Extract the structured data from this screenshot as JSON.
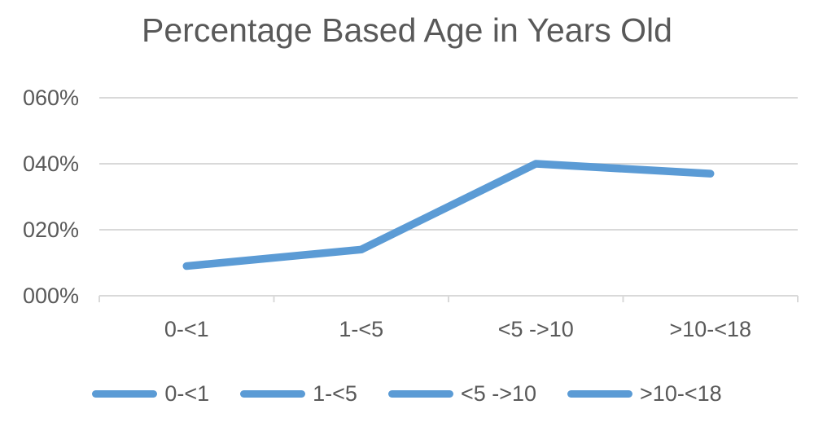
{
  "chart_data": {
    "type": "line",
    "title": "Percentage Based Age in Years Old",
    "categories": [
      "0-<1",
      "1-<5",
      "<5 ->10",
      ">10-<18"
    ],
    "series": [
      {
        "name": "Percentage Based Age in Years Old",
        "values": [
          9,
          14,
          40,
          37
        ]
      }
    ],
    "xlabel": "",
    "ylabel": "",
    "ylim": [
      0,
      60
    ],
    "y_ticks": [
      {
        "value": 0,
        "label": "000%"
      },
      {
        "value": 20,
        "label": "020%"
      },
      {
        "value": 40,
        "label": "040%"
      },
      {
        "value": 60,
        "label": "060%"
      }
    ],
    "grid": "horizontal",
    "legend": {
      "position": "bottom",
      "entries": [
        "0-<1",
        "1-<5",
        "<5 ->10",
        ">10-<18"
      ]
    },
    "colors": {
      "line": "#5B9BD5",
      "grid": "#D9D9D9",
      "axis": "#D9D9D9",
      "text": "#595959",
      "title_text": "#595959",
      "background": "#FFFFFF"
    }
  }
}
